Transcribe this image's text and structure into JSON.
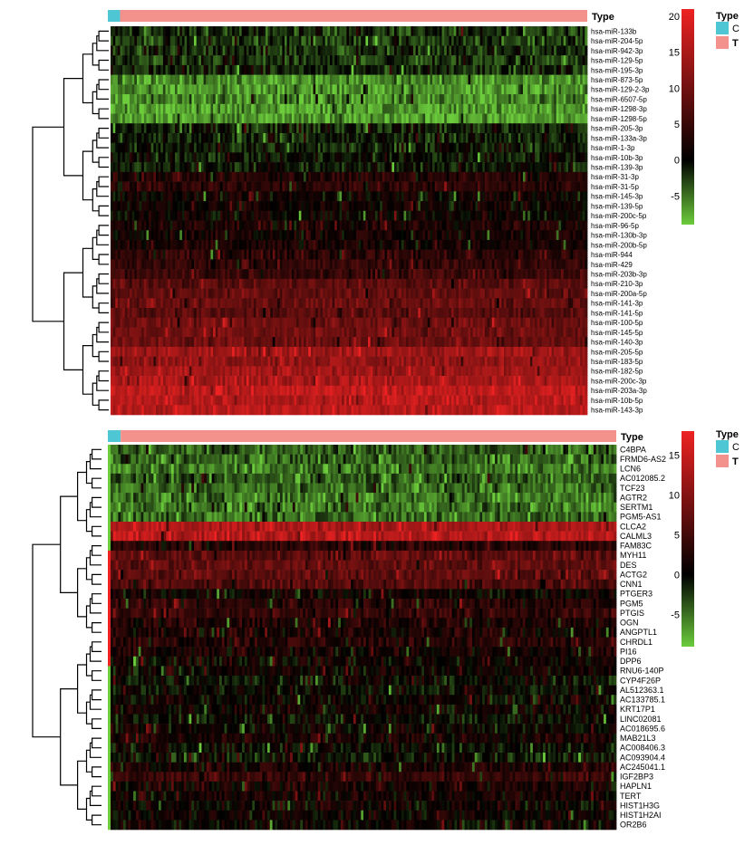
{
  "chart_data": [
    {
      "type": "heatmap",
      "annotation_title": "Type",
      "legend": {
        "title": "Type",
        "entries": [
          {
            "label": "C",
            "color": "#4fc6d3"
          },
          {
            "label": "T",
            "color": "#f3918c"
          }
        ]
      },
      "colorbar": {
        "ticks": [
          20,
          15,
          10,
          5,
          0,
          -5
        ],
        "range": [
          -9,
          21
        ],
        "colors": [
          "#6ccc3c",
          "#000000",
          "#ee2222"
        ]
      },
      "n_samples": 200,
      "n_control": 4,
      "rows": [
        {
          "label": "hsa-miR-133b",
          "mean": -2
        },
        {
          "label": "hsa-miR-204-5p",
          "mean": -2.5
        },
        {
          "label": "hsa-miR-942-3p",
          "mean": -2
        },
        {
          "label": "hsa-miR-129-5p",
          "mean": -2.5
        },
        {
          "label": "hsa-miR-195-3p",
          "mean": -1.5
        },
        {
          "label": "hsa-miR-873-5p",
          "mean": -6
        },
        {
          "label": "hsa-miR-129-2-3p",
          "mean": -6.5
        },
        {
          "label": "hsa-miR-6507-5p",
          "mean": -6
        },
        {
          "label": "hsa-miR-1298-3p",
          "mean": -6.5
        },
        {
          "label": "hsa-miR-1298-5p",
          "mean": -7
        },
        {
          "label": "hsa-miR-205-3p",
          "mean": -1
        },
        {
          "label": "hsa-miR-133a-3p",
          "mean": -1.2
        },
        {
          "label": "hsa-miR-1-3p",
          "mean": -1
        },
        {
          "label": "hsa-miR-10b-3p",
          "mean": -0.5
        },
        {
          "label": "hsa-miR-139-3p",
          "mean": -0.8
        },
        {
          "label": "hsa-miR-31-3p",
          "mean": 3
        },
        {
          "label": "hsa-miR-31-5p",
          "mean": 4
        },
        {
          "label": "hsa-miR-145-3p",
          "mean": 1
        },
        {
          "label": "hsa-miR-139-5p",
          "mean": 1.5
        },
        {
          "label": "hsa-miR-200c-5p",
          "mean": 1
        },
        {
          "label": "hsa-miR-96-5p",
          "mean": 2.5
        },
        {
          "label": "hsa-miR-130b-3p",
          "mean": 2
        },
        {
          "label": "hsa-miR-200b-5p",
          "mean": 2
        },
        {
          "label": "hsa-miR-944",
          "mean": 4
        },
        {
          "label": "hsa-miR-429",
          "mean": 4.5
        },
        {
          "label": "hsa-miR-203b-3p",
          "mean": 5
        },
        {
          "label": "hsa-miR-210-3p",
          "mean": 8
        },
        {
          "label": "hsa-miR-200a-5p",
          "mean": 8.5
        },
        {
          "label": "hsa-miR-141-3p",
          "mean": 9
        },
        {
          "label": "hsa-miR-141-5p",
          "mean": 8
        },
        {
          "label": "hsa-miR-100-5p",
          "mean": 9.5
        },
        {
          "label": "hsa-miR-145-5p",
          "mean": 10
        },
        {
          "label": "hsa-miR-140-3p",
          "mean": 9.5
        },
        {
          "label": "hsa-miR-205-5p",
          "mean": 14
        },
        {
          "label": "hsa-miR-183-5p",
          "mean": 13
        },
        {
          "label": "hsa-miR-182-5p",
          "mean": 14
        },
        {
          "label": "hsa-miR-200c-3p",
          "mean": 15
        },
        {
          "label": "hsa-miR-203a-3p",
          "mean": 17
        },
        {
          "label": "hsa-miR-10b-5p",
          "mean": 16
        },
        {
          "label": "hsa-miR-143-3p",
          "mean": 16.5
        }
      ]
    },
    {
      "type": "heatmap",
      "annotation_title": "Type",
      "legend": {
        "title": "Type",
        "entries": [
          {
            "label": "C",
            "color": "#4fc6d3"
          },
          {
            "label": "T",
            "color": "#f3918c"
          }
        ]
      },
      "colorbar": {
        "ticks": [
          15,
          10,
          5,
          0,
          -5
        ],
        "range": [
          -9,
          18
        ],
        "colors": [
          "#6ccc3c",
          "#000000",
          "#ee2222"
        ]
      },
      "n_samples": 200,
      "n_control": 4,
      "rows": [
        {
          "label": "C4BPA",
          "mean": -4,
          "side": "C"
        },
        {
          "label": "FRMD6-AS2",
          "mean": -4.5,
          "side": "C"
        },
        {
          "label": "LCN6",
          "mean": -5,
          "side": "C"
        },
        {
          "label": "AC012085.2",
          "mean": -4,
          "side": "C"
        },
        {
          "label": "TCF23",
          "mean": -4.5,
          "side": "C"
        },
        {
          "label": "AGTR2",
          "mean": -5,
          "side": "C"
        },
        {
          "label": "SERTM1",
          "mean": -5,
          "side": "C"
        },
        {
          "label": "PGM5-AS1",
          "mean": -4.5,
          "side": "C"
        },
        {
          "label": "CLCA2",
          "mean": 13,
          "side": "C"
        },
        {
          "label": "CALML3",
          "mean": 14,
          "side": "C"
        },
        {
          "label": "FAM83C",
          "mean": 3,
          "side": "C"
        },
        {
          "label": "MYH11",
          "mean": 7,
          "side": "T"
        },
        {
          "label": "DES",
          "mean": 7.5,
          "side": "T"
        },
        {
          "label": "ACTG2",
          "mean": 7,
          "side": "T"
        },
        {
          "label": "CNN1",
          "mean": 6,
          "side": "T"
        },
        {
          "label": "PTGER3",
          "mean": 1,
          "side": "T"
        },
        {
          "label": "PGM5",
          "mean": 3,
          "side": "T"
        },
        {
          "label": "PTGIS",
          "mean": 4,
          "side": "T"
        },
        {
          "label": "OGN",
          "mean": 2.5,
          "side": "T"
        },
        {
          "label": "ANGPTL1",
          "mean": 2,
          "side": "T"
        },
        {
          "label": "CHRDL1",
          "mean": 3,
          "side": "T"
        },
        {
          "label": "PI16",
          "mean": 1.5,
          "side": "T"
        },
        {
          "label": "DPP6",
          "mean": 1,
          "side": "T"
        },
        {
          "label": "RNU6-140P",
          "mean": 1,
          "side": "C"
        },
        {
          "label": "CYP4F26P",
          "mean": 0,
          "side": "C"
        },
        {
          "label": "AL512363.1",
          "mean": 0,
          "side": "C"
        },
        {
          "label": "AC133785.1",
          "mean": 0.5,
          "side": "C"
        },
        {
          "label": "KRT17P1",
          "mean": 1,
          "side": "C"
        },
        {
          "label": "LINC02081",
          "mean": 0,
          "side": "C"
        },
        {
          "label": "AC018695.6",
          "mean": 0.5,
          "side": "C"
        },
        {
          "label": "MAB21L3",
          "mean": 2,
          "side": "C"
        },
        {
          "label": "AC008406.3",
          "mean": 0,
          "side": "C"
        },
        {
          "label": "AC093904.4",
          "mean": -0.5,
          "side": "C"
        },
        {
          "label": "AC245041.1",
          "mean": 2,
          "side": "C"
        },
        {
          "label": "IGF2BP3",
          "mean": 4,
          "side": "C"
        },
        {
          "label": "HAPLN1",
          "mean": 2,
          "side": "C"
        },
        {
          "label": "TERT",
          "mean": 1.5,
          "side": "C"
        },
        {
          "label": "HIST1H3G",
          "mean": 1,
          "side": "C"
        },
        {
          "label": "HIST1H2AI",
          "mean": 1,
          "side": "C"
        },
        {
          "label": "OR2B6",
          "mean": 0.5,
          "side": "C"
        }
      ]
    }
  ]
}
